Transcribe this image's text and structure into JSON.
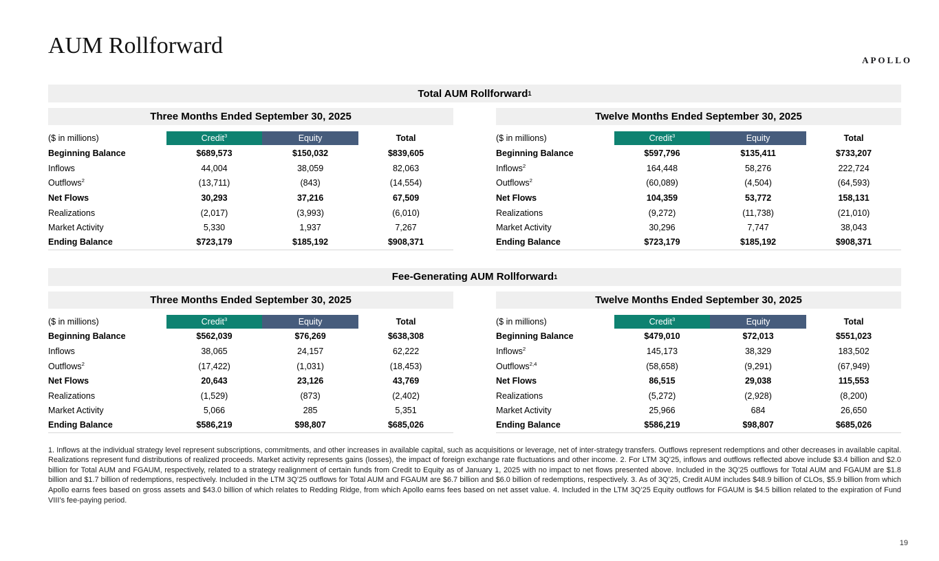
{
  "page": {
    "logo": "APOLLO",
    "title": "AUM Rollforward",
    "page_number": "19"
  },
  "colors": {
    "credit_header": "#0E8271",
    "equity_header": "#465C7C",
    "header_bar": "#EFEFEF"
  },
  "sections": [
    {
      "title": "Total AUM Rollforward",
      "title_sup": "1",
      "tables": [
        {
          "period": "Three Months Ended September 30, 2025",
          "unit_label": "($ in millions)",
          "columns": [
            {
              "label": "Credit",
              "sup": "3"
            },
            {
              "label": "Equity",
              "sup": ""
            },
            {
              "label": "Total",
              "sup": ""
            }
          ],
          "rows": [
            {
              "label": "Beginning Balance",
              "sup": "",
              "bold": true,
              "values": [
                "$689,573",
                "$150,032",
                "$839,605"
              ]
            },
            {
              "label": "Inflows",
              "sup": "",
              "bold": false,
              "values": [
                "44,004",
                "38,059",
                "82,063"
              ]
            },
            {
              "label": "Outflows",
              "sup": "2",
              "bold": false,
              "values": [
                "(13,711)",
                "(843)",
                "(14,554)"
              ]
            },
            {
              "label": "Net Flows",
              "sup": "",
              "bold": true,
              "values": [
                "30,293",
                "37,216",
                "67,509"
              ]
            },
            {
              "label": "Realizations",
              "sup": "",
              "bold": false,
              "values": [
                "(2,017)",
                "(3,993)",
                "(6,010)"
              ]
            },
            {
              "label": "Market Activity",
              "sup": "",
              "bold": false,
              "values": [
                "5,330",
                "1,937",
                "7,267"
              ]
            },
            {
              "label": "Ending Balance",
              "sup": "",
              "bold": true,
              "values": [
                "$723,179",
                "$185,192",
                "$908,371"
              ]
            }
          ]
        },
        {
          "period": "Twelve Months Ended September 30, 2025",
          "unit_label": "($ in millions)",
          "columns": [
            {
              "label": "Credit",
              "sup": "3"
            },
            {
              "label": "Equity",
              "sup": ""
            },
            {
              "label": "Total",
              "sup": ""
            }
          ],
          "rows": [
            {
              "label": "Beginning Balance",
              "sup": "",
              "bold": true,
              "values": [
                "$597,796",
                "$135,411",
                "$733,207"
              ]
            },
            {
              "label": "Inflows",
              "sup": "2",
              "bold": false,
              "values": [
                "164,448",
                "58,276",
                "222,724"
              ]
            },
            {
              "label": "Outflows",
              "sup": "2",
              "bold": false,
              "values": [
                "(60,089)",
                "(4,504)",
                "(64,593)"
              ]
            },
            {
              "label": "Net Flows",
              "sup": "",
              "bold": true,
              "values": [
                "104,359",
                "53,772",
                "158,131"
              ]
            },
            {
              "label": "Realizations",
              "sup": "",
              "bold": false,
              "values": [
                "(9,272)",
                "(11,738)",
                "(21,010)"
              ]
            },
            {
              "label": "Market Activity",
              "sup": "",
              "bold": false,
              "values": [
                "30,296",
                "7,747",
                "38,043"
              ]
            },
            {
              "label": "Ending Balance",
              "sup": "",
              "bold": true,
              "values": [
                "$723,179",
                "$185,192",
                "$908,371"
              ]
            }
          ]
        }
      ]
    },
    {
      "title": "Fee-Generating AUM Rollforward",
      "title_sup": "1",
      "tables": [
        {
          "period": "Three Months Ended September 30, 2025",
          "unit_label": "($ in millions)",
          "columns": [
            {
              "label": "Credit",
              "sup": "3"
            },
            {
              "label": "Equity",
              "sup": ""
            },
            {
              "label": "Total",
              "sup": ""
            }
          ],
          "rows": [
            {
              "label": "Beginning Balance",
              "sup": "",
              "bold": true,
              "values": [
                "$562,039",
                "$76,269",
                "$638,308"
              ]
            },
            {
              "label": "Inflows",
              "sup": "",
              "bold": false,
              "values": [
                "38,065",
                "24,157",
                "62,222"
              ]
            },
            {
              "label": "Outflows",
              "sup": "2",
              "bold": false,
              "values": [
                "(17,422)",
                "(1,031)",
                "(18,453)"
              ]
            },
            {
              "label": "Net Flows",
              "sup": "",
              "bold": true,
              "values": [
                "20,643",
                "23,126",
                "43,769"
              ]
            },
            {
              "label": "Realizations",
              "sup": "",
              "bold": false,
              "values": [
                "(1,529)",
                "(873)",
                "(2,402)"
              ]
            },
            {
              "label": "Market Activity",
              "sup": "",
              "bold": false,
              "values": [
                "5,066",
                "285",
                "5,351"
              ]
            },
            {
              "label": "Ending Balance",
              "sup": "",
              "bold": true,
              "values": [
                "$586,219",
                "$98,807",
                "$685,026"
              ]
            }
          ]
        },
        {
          "period": "Twelve Months Ended September 30, 2025",
          "unit_label": "($ in millions)",
          "columns": [
            {
              "label": "Credit",
              "sup": "3"
            },
            {
              "label": "Equity",
              "sup": ""
            },
            {
              "label": "Total",
              "sup": ""
            }
          ],
          "rows": [
            {
              "label": "Beginning Balance",
              "sup": "",
              "bold": true,
              "values": [
                "$479,010",
                "$72,013",
                "$551,023"
              ]
            },
            {
              "label": "Inflows",
              "sup": "2",
              "bold": false,
              "values": [
                "145,173",
                "38,329",
                "183,502"
              ]
            },
            {
              "label": "Outflows",
              "sup": "2,4",
              "bold": false,
              "values": [
                "(58,658)",
                "(9,291)",
                "(67,949)"
              ]
            },
            {
              "label": "Net Flows",
              "sup": "",
              "bold": true,
              "values": [
                "86,515",
                "29,038",
                "115,553"
              ]
            },
            {
              "label": "Realizations",
              "sup": "",
              "bold": false,
              "values": [
                "(5,272)",
                "(2,928)",
                "(8,200)"
              ]
            },
            {
              "label": "Market Activity",
              "sup": "",
              "bold": false,
              "values": [
                "25,966",
                "684",
                "26,650"
              ]
            },
            {
              "label": "Ending Balance",
              "sup": "",
              "bold": true,
              "values": [
                "$586,219",
                "$98,807",
                "$685,026"
              ]
            }
          ]
        }
      ]
    }
  ],
  "footnotes": "1. Inflows at the individual strategy level represent subscriptions, commitments, and other increases in available capital, such as acquisitions or leverage, net of inter-strategy transfers. Outflows represent redemptions and other decreases in available capital. Realizations represent fund distributions of realized proceeds. Market activity represents gains (losses), the impact of foreign exchange rate fluctuations and other income. 2. For LTM 3Q’25, inflows and outflows reflected above include $3.4 billion and $2.0 billion for Total AUM and FGAUM, respectively, related to a strategy realignment of certain funds from Credit to Equity as of January 1, 2025 with no impact to net flows presented above. Included in the 3Q’25 outflows for Total AUM and FGAUM are $1.8 billion and $1.7 billion of redemptions, respectively. Included in the LTM 3Q’25 outflows for Total AUM and FGAUM are $6.7 billion and $6.0 billion of redemptions, respectively. 3. As of 3Q’25, Credit AUM includes $48.9 billion of CLOs, $5.9 billion from which Apollo earns fees based on gross assets and $43.0 billion of which relates to Redding Ridge, from which Apollo earns fees based on net asset value. 4. Included in the LTM 3Q’25 Equity outflows for FGAUM is $4.5 billion related to the expiration of Fund VIII’s fee-paying period."
}
